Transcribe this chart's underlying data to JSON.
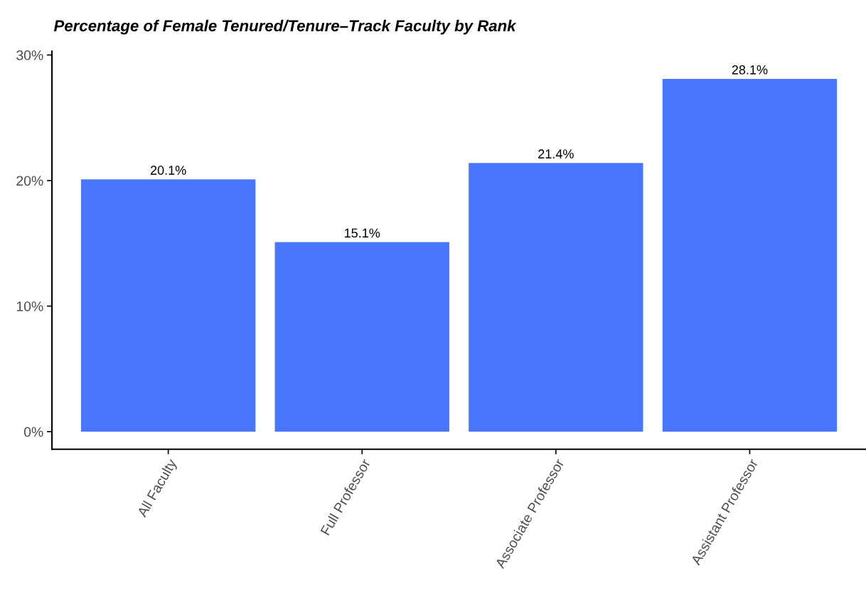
{
  "chart_data": {
    "type": "bar",
    "title": "Percentage of Female Tenured/Tenure–Track Faculty by Rank",
    "categories": [
      "All Faculty",
      "Full Professor",
      "Associate Professor",
      "Assistant Professor"
    ],
    "values": [
      20.1,
      15.1,
      21.4,
      28.1
    ],
    "value_labels": [
      "20.1%",
      "15.1%",
      "21.4%",
      "28.1%"
    ],
    "color": "#4876ff",
    "ylim": [
      -1.4,
      30.3
    ],
    "yticks": [
      {
        "value": 0,
        "label": "0%"
      },
      {
        "value": 10,
        "label": "10%"
      },
      {
        "value": 20,
        "label": "20%"
      },
      {
        "value": 30,
        "label": "30%"
      }
    ],
    "grid": false,
    "legend": false
  }
}
